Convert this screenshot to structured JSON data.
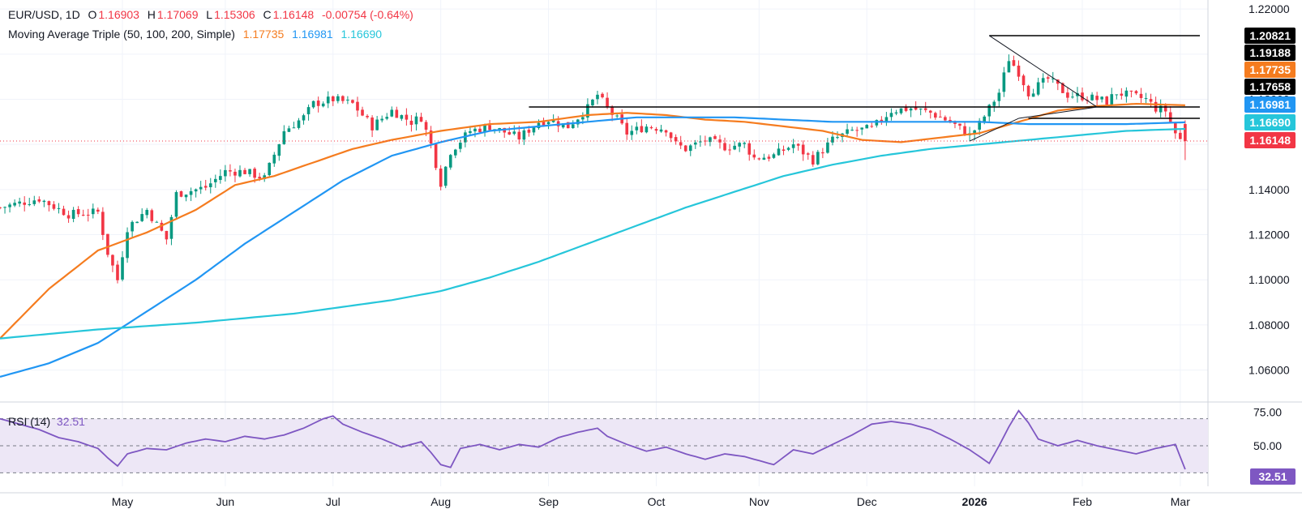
{
  "header": {
    "symbol": "EUR/USD, 1D",
    "o_label": "O",
    "o": "1.16903",
    "h_label": "H",
    "h": "1.17069",
    "l_label": "L",
    "l": "1.15306",
    "c_label": "C",
    "c": "1.16148",
    "change": "-0.00754 (-0.64%)",
    "ma_label": "Moving Average Triple (50, 100, 200, Simple)",
    "ma50": "1.17735",
    "ma100": "1.16981",
    "ma200": "1.16690"
  },
  "colors": {
    "up": "#089981",
    "down": "#f23645",
    "ma50": "#f57c1f",
    "ma100": "#2196f3",
    "ma200": "#26c6da",
    "rsi": "#7e57c2",
    "rsi_band": "#ede7f6",
    "black": "#000000"
  },
  "price_labels": [
    "1.20821",
    "1.19188",
    "1.17735",
    "1.17658",
    "1.16981",
    "1.16690",
    "1.16148"
  ],
  "rsi": {
    "label": "RSI (14)",
    "value": "32.51",
    "value_num": 32.51
  },
  "chart_data": {
    "type": "candlestick",
    "title": "EUR/USD, 1D",
    "y_ticks": [
      1.06,
      1.08,
      1.1,
      1.12,
      1.14,
      1.16,
      1.18,
      1.2,
      1.22
    ],
    "y_tick_labels": [
      "1.06000",
      "1.08000",
      "1.10000",
      "1.12000",
      "1.14000",
      "1.16000",
      "1.18000",
      "1.20000",
      "1.22000"
    ],
    "ylim": [
      1.048,
      1.224
    ],
    "x_labels": [
      "May",
      "Jun",
      "Jul",
      "Aug",
      "Sep",
      "Oct",
      "Nov",
      "Dec",
      "2026",
      "Feb",
      "Mar"
    ],
    "x_label_day_index": [
      25,
      46,
      68,
      90,
      112,
      134,
      155,
      177,
      199,
      221,
      241
    ],
    "days": 245,
    "close_path": [
      [
        0,
        1.132
      ],
      [
        8,
        1.136
      ],
      [
        14,
        1.129
      ],
      [
        20,
        1.13
      ],
      [
        22,
        1.112
      ],
      [
        24,
        1.1
      ],
      [
        26,
        1.123
      ],
      [
        30,
        1.131
      ],
      [
        34,
        1.118
      ],
      [
        36,
        1.138
      ],
      [
        42,
        1.141
      ],
      [
        46,
        1.148
      ],
      [
        50,
        1.148
      ],
      [
        54,
        1.145
      ],
      [
        58,
        1.166
      ],
      [
        62,
        1.172
      ],
      [
        64,
        1.178
      ],
      [
        68,
        1.18
      ],
      [
        72,
        1.178
      ],
      [
        76,
        1.168
      ],
      [
        80,
        1.175
      ],
      [
        84,
        1.17
      ],
      [
        86,
        1.172
      ],
      [
        88,
        1.16
      ],
      [
        90,
        1.143
      ],
      [
        92,
        1.157
      ],
      [
        96,
        1.166
      ],
      [
        100,
        1.168
      ],
      [
        106,
        1.163
      ],
      [
        110,
        1.17
      ],
      [
        112,
        1.171
      ],
      [
        116,
        1.168
      ],
      [
        120,
        1.176
      ],
      [
        122,
        1.182
      ],
      [
        124,
        1.176
      ],
      [
        126,
        1.171
      ],
      [
        128,
        1.165
      ],
      [
        132,
        1.168
      ],
      [
        136,
        1.167
      ],
      [
        138,
        1.16
      ],
      [
        140,
        1.158
      ],
      [
        144,
        1.162
      ],
      [
        148,
        1.159
      ],
      [
        152,
        1.16
      ],
      [
        154,
        1.154
      ],
      [
        158,
        1.155
      ],
      [
        162,
        1.16
      ],
      [
        166,
        1.153
      ],
      [
        170,
        1.162
      ],
      [
        174,
        1.166
      ],
      [
        178,
        1.167
      ],
      [
        182,
        1.175
      ],
      [
        186,
        1.176
      ],
      [
        190,
        1.174
      ],
      [
        194,
        1.17
      ],
      [
        198,
        1.164
      ],
      [
        200,
        1.169
      ],
      [
        204,
        1.183
      ],
      [
        206,
        1.198
      ],
      [
        208,
        1.192
      ],
      [
        210,
        1.183
      ],
      [
        212,
        1.186
      ],
      [
        214,
        1.189
      ],
      [
        218,
        1.182
      ],
      [
        222,
        1.181
      ],
      [
        226,
        1.179
      ],
      [
        228,
        1.183
      ],
      [
        232,
        1.181
      ],
      [
        234,
        1.18
      ],
      [
        236,
        1.176
      ],
      [
        238,
        1.175
      ],
      [
        240,
        1.165
      ],
      [
        241,
        1.162
      ],
      [
        242,
        1.16148
      ]
    ],
    "last_candle": {
      "open": 1.16903,
      "high": 1.17069,
      "low": 1.15306,
      "close": 1.16148
    },
    "series": [
      {
        "name": "MA 50",
        "color": "#f57c1f",
        "points": [
          [
            0,
            1.074
          ],
          [
            10,
            1.096
          ],
          [
            20,
            1.113
          ],
          [
            30,
            1.121
          ],
          [
            40,
            1.131
          ],
          [
            48,
            1.142
          ],
          [
            56,
            1.146
          ],
          [
            64,
            1.152
          ],
          [
            72,
            1.158
          ],
          [
            80,
            1.162
          ],
          [
            90,
            1.166
          ],
          [
            100,
            1.169
          ],
          [
            110,
            1.17
          ],
          [
            120,
            1.173
          ],
          [
            128,
            1.174
          ],
          [
            136,
            1.173
          ],
          [
            144,
            1.171
          ],
          [
            152,
            1.17
          ],
          [
            160,
            1.168
          ],
          [
            168,
            1.166
          ],
          [
            176,
            1.162
          ],
          [
            184,
            1.161
          ],
          [
            192,
            1.163
          ],
          [
            200,
            1.165
          ],
          [
            208,
            1.17
          ],
          [
            216,
            1.175
          ],
          [
            224,
            1.177
          ],
          [
            232,
            1.178
          ],
          [
            242,
            1.17735
          ]
        ]
      },
      {
        "name": "MA 100",
        "color": "#2196f3",
        "points": [
          [
            0,
            1.057
          ],
          [
            10,
            1.063
          ],
          [
            20,
            1.072
          ],
          [
            30,
            1.086
          ],
          [
            40,
            1.1
          ],
          [
            50,
            1.116
          ],
          [
            60,
            1.13
          ],
          [
            70,
            1.144
          ],
          [
            80,
            1.155
          ],
          [
            90,
            1.161
          ],
          [
            100,
            1.166
          ],
          [
            110,
            1.168
          ],
          [
            120,
            1.17
          ],
          [
            130,
            1.172
          ],
          [
            140,
            1.172
          ],
          [
            150,
            1.172
          ],
          [
            160,
            1.171
          ],
          [
            170,
            1.17
          ],
          [
            180,
            1.17
          ],
          [
            190,
            1.17
          ],
          [
            200,
            1.17
          ],
          [
            210,
            1.169
          ],
          [
            220,
            1.169
          ],
          [
            230,
            1.169
          ],
          [
            242,
            1.16981
          ]
        ]
      },
      {
        "name": "MA 200",
        "color": "#26c6da",
        "points": [
          [
            0,
            1.074
          ],
          [
            20,
            1.078
          ],
          [
            40,
            1.081
          ],
          [
            60,
            1.085
          ],
          [
            70,
            1.088
          ],
          [
            80,
            1.091
          ],
          [
            90,
            1.095
          ],
          [
            100,
            1.101
          ],
          [
            110,
            1.108
          ],
          [
            120,
            1.116
          ],
          [
            130,
            1.124
          ],
          [
            140,
            1.132
          ],
          [
            150,
            1.139
          ],
          [
            160,
            1.146
          ],
          [
            170,
            1.151
          ],
          [
            180,
            1.155
          ],
          [
            190,
            1.158
          ],
          [
            200,
            1.16
          ],
          [
            210,
            1.162
          ],
          [
            220,
            1.164
          ],
          [
            230,
            1.166
          ],
          [
            242,
            1.1669
          ]
        ]
      }
    ],
    "annotations": {
      "hlines": [
        {
          "level": 1.20821,
          "from_day": 202,
          "to_day": 245
        },
        {
          "level": 1.17658,
          "from_day": 108,
          "to_day": 245
        },
        {
          "level": 1.17155,
          "from_day": 210,
          "to_day": 245
        }
      ],
      "triangle": [
        [
          202,
          1.20821
        ],
        [
          224,
          1.17658
        ],
        [
          208,
          1.17155
        ],
        [
          198,
          1.16148
        ]
      ]
    },
    "rsi_ticks": [
      75,
      50
    ],
    "rsi_tick_labels": [
      "75.00",
      "50.00"
    ],
    "rsi_band": [
      30,
      70
    ],
    "rsi_path": [
      [
        0,
        70
      ],
      [
        4,
        66
      ],
      [
        8,
        62
      ],
      [
        12,
        56
      ],
      [
        16,
        53
      ],
      [
        20,
        48
      ],
      [
        22,
        41
      ],
      [
        24,
        35
      ],
      [
        26,
        44
      ],
      [
        30,
        48
      ],
      [
        34,
        47
      ],
      [
        38,
        52
      ],
      [
        42,
        55
      ],
      [
        46,
        53
      ],
      [
        50,
        57
      ],
      [
        54,
        55
      ],
      [
        58,
        58
      ],
      [
        62,
        63
      ],
      [
        66,
        70
      ],
      [
        68,
        72
      ],
      [
        70,
        66
      ],
      [
        74,
        60
      ],
      [
        78,
        55
      ],
      [
        82,
        49
      ],
      [
        86,
        53
      ],
      [
        88,
        45
      ],
      [
        90,
        36
      ],
      [
        92,
        34
      ],
      [
        94,
        48
      ],
      [
        98,
        51
      ],
      [
        102,
        47
      ],
      [
        106,
        51
      ],
      [
        110,
        49
      ],
      [
        114,
        56
      ],
      [
        118,
        60
      ],
      [
        122,
        63
      ],
      [
        124,
        57
      ],
      [
        128,
        51
      ],
      [
        132,
        46
      ],
      [
        136,
        49
      ],
      [
        140,
        44
      ],
      [
        144,
        40
      ],
      [
        148,
        44
      ],
      [
        152,
        42
      ],
      [
        156,
        38
      ],
      [
        158,
        36
      ],
      [
        162,
        47
      ],
      [
        166,
        44
      ],
      [
        170,
        51
      ],
      [
        174,
        58
      ],
      [
        178,
        66
      ],
      [
        182,
        68
      ],
      [
        186,
        66
      ],
      [
        190,
        62
      ],
      [
        194,
        55
      ],
      [
        198,
        47
      ],
      [
        202,
        37
      ],
      [
        204,
        50
      ],
      [
        206,
        64
      ],
      [
        208,
        76
      ],
      [
        210,
        67
      ],
      [
        212,
        55
      ],
      [
        216,
        50
      ],
      [
        220,
        54
      ],
      [
        224,
        50
      ],
      [
        228,
        47
      ],
      [
        232,
        44
      ],
      [
        236,
        48
      ],
      [
        240,
        51
      ],
      [
        242,
        32.51
      ]
    ]
  }
}
